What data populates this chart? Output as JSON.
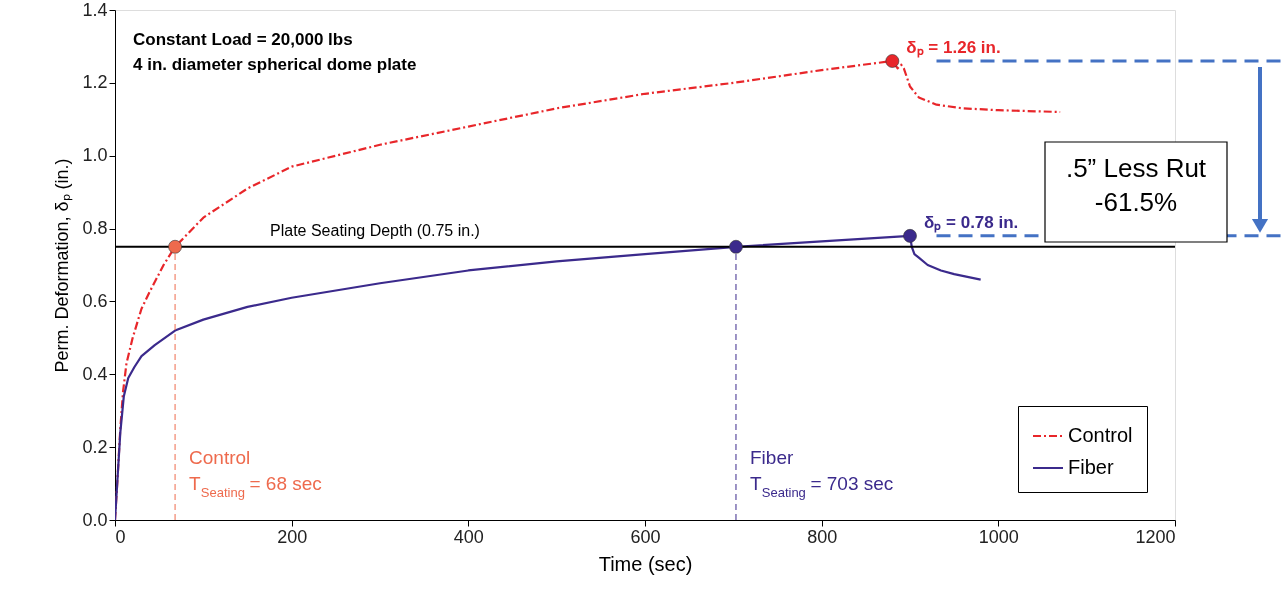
{
  "chart_data": {
    "type": "line",
    "xlabel": "Time (sec)",
    "ylabel": "Perm. Deformation, δₚ (in.)",
    "xlim": [
      0,
      1200
    ],
    "xticks": [
      0,
      200,
      400,
      600,
      800,
      {
        "value": 1000,
        "label": "1000"
      },
      {
        "value": 1200,
        "label": "1200"
      }
    ],
    "ylim": [
      0,
      1.4
    ],
    "yticks": [
      {
        "value": 0,
        "label": "0.0"
      },
      0.2,
      0.4,
      0.6,
      0.8,
      {
        "value": 1,
        "label": "1.0"
      },
      1.2,
      1.4
    ],
    "grid": false,
    "legend": "bottom right",
    "series": [
      {
        "name": "Control",
        "type": "line",
        "color": "#e8262a",
        "line_style": "dashed",
        "x": [
          0,
          3,
          6,
          9,
          13,
          20,
          30,
          40,
          55,
          68,
          100,
          150,
          200,
          300,
          400,
          500,
          600,
          700,
          800,
          880,
          886,
          890,
          893,
          900,
          910,
          930,
          960,
          1000,
          1070
        ],
        "values": [
          0,
          0.12,
          0.25,
          0.35,
          0.43,
          0.5,
          0.58,
          0.63,
          0.7,
          0.75,
          0.83,
          0.91,
          0.97,
          1.03,
          1.08,
          1.13,
          1.17,
          1.2,
          1.235,
          1.26,
          1.24,
          1.25,
          1.24,
          1.19,
          1.16,
          1.14,
          1.13,
          1.125,
          1.12
        ]
      },
      {
        "name": "Fiber",
        "type": "line",
        "color": "#3b2a8c",
        "line_style": "solid",
        "x": [
          0,
          3,
          6,
          10,
          15,
          22,
          30,
          45,
          68,
          100,
          150,
          200,
          300,
          400,
          500,
          600,
          703,
          800,
          900,
          902,
          905,
          910,
          920,
          935,
          950,
          980
        ],
        "values": [
          0,
          0.12,
          0.24,
          0.34,
          0.39,
          0.42,
          0.45,
          0.48,
          0.52,
          0.55,
          0.585,
          0.61,
          0.65,
          0.685,
          0.71,
          0.73,
          0.75,
          0.765,
          0.78,
          0.75,
          0.73,
          0.72,
          0.7,
          0.685,
          0.675,
          0.66
        ]
      },
      {
        "type": "scatter",
        "marker": "circle",
        "colors": [
          "#ee6a4d",
          "#e8262a"
        ],
        "x": [
          68,
          880
        ],
        "values": [
          0.75,
          1.26
        ]
      },
      {
        "type": "scatter",
        "marker": "circle",
        "color": "#3b2a8c",
        "x": [
          703,
          900
        ],
        "values": [
          0.75,
          0.78
        ]
      }
    ],
    "ref_lines": [
      {
        "axis": "y",
        "value": 0.75,
        "label": "Plate Seating Depth (0.75 in.)",
        "color": "#000000"
      },
      {
        "axis": "x",
        "value": 68,
        "label": "Control\nT$_{Seating}$ = 68 sec",
        "color": "#ee6a4d",
        "line_style": "dashed"
      },
      {
        "axis": "x",
        "value": 703,
        "label": "Fiber\nT$_{Seating}$ = 703 sec",
        "color": "#3b2a8c",
        "line_style": "dashed"
      },
      {
        "axis": "y",
        "value": 1.26,
        "color": "#4472c4",
        "line_style": "dashed"
      },
      {
        "axis": "y",
        "value": 0.78,
        "color": "#4472c4",
        "line_style": "dashed"
      }
    ],
    "annotations": [
      "Constant Load = 20,000 lbs",
      "4 in. diameter spherical dome plate",
      {
        "text": "δₚ = 1.26 in.",
        "x": 880,
        "y": 1.26
      },
      {
        "text": "δₚ = 0.78 in.",
        "x": 900,
        "y": 0.78
      },
      ".5” Less Rut\n-61.5%"
    ]
  }
}
